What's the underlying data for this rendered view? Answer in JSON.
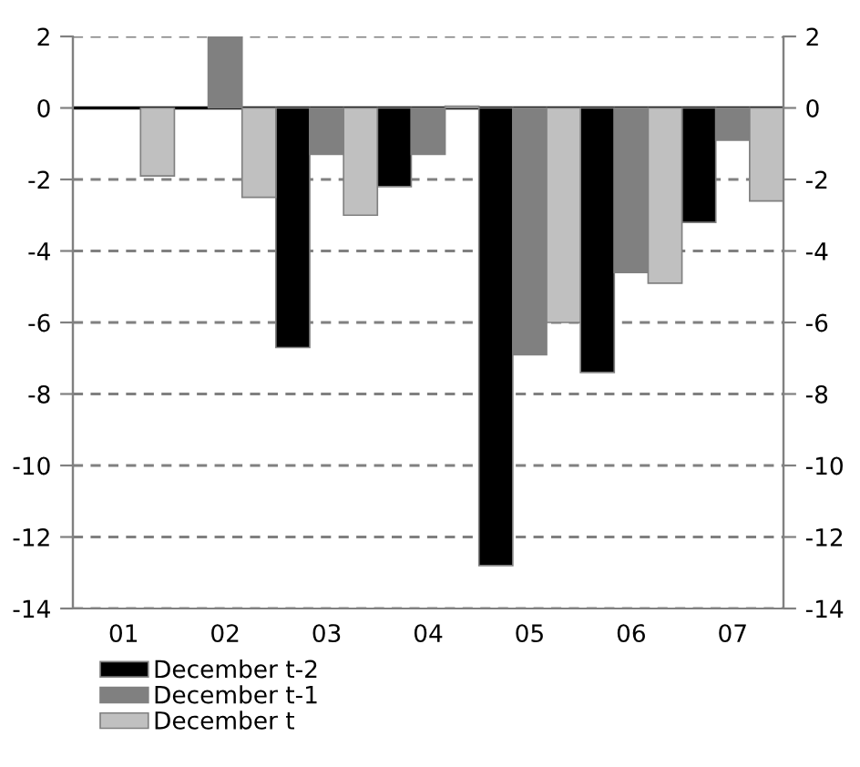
{
  "chart_data": {
    "type": "bar",
    "categories": [
      "01",
      "02",
      "03",
      "04",
      "05",
      "06",
      "07"
    ],
    "series": [
      {
        "name": "December t-2",
        "color": "#000000",
        "values": [
          null,
          null,
          -6.7,
          -2.2,
          -12.8,
          -7.4,
          -3.2
        ]
      },
      {
        "name": "December t-1",
        "color": "#808080",
        "values": [
          null,
          2.0,
          -1.3,
          -1.3,
          -6.9,
          -4.6,
          -0.9
        ]
      },
      {
        "name": "December t",
        "color": "#c0c0c0",
        "values": [
          -1.9,
          -2.5,
          -3.0,
          0.05,
          -6.0,
          -4.9,
          -2.6
        ]
      }
    ],
    "ylim": [
      -14,
      2
    ],
    "yticks": [
      -14,
      -12,
      -10,
      -8,
      -6,
      -4,
      -2,
      0,
      2
    ],
    "y2lim": [
      -14,
      2
    ],
    "y2ticks": [
      -14,
      -12,
      -10,
      -8,
      -6,
      -4,
      -2,
      0,
      2
    ],
    "grid": "y",
    "legend": "bottom"
  }
}
